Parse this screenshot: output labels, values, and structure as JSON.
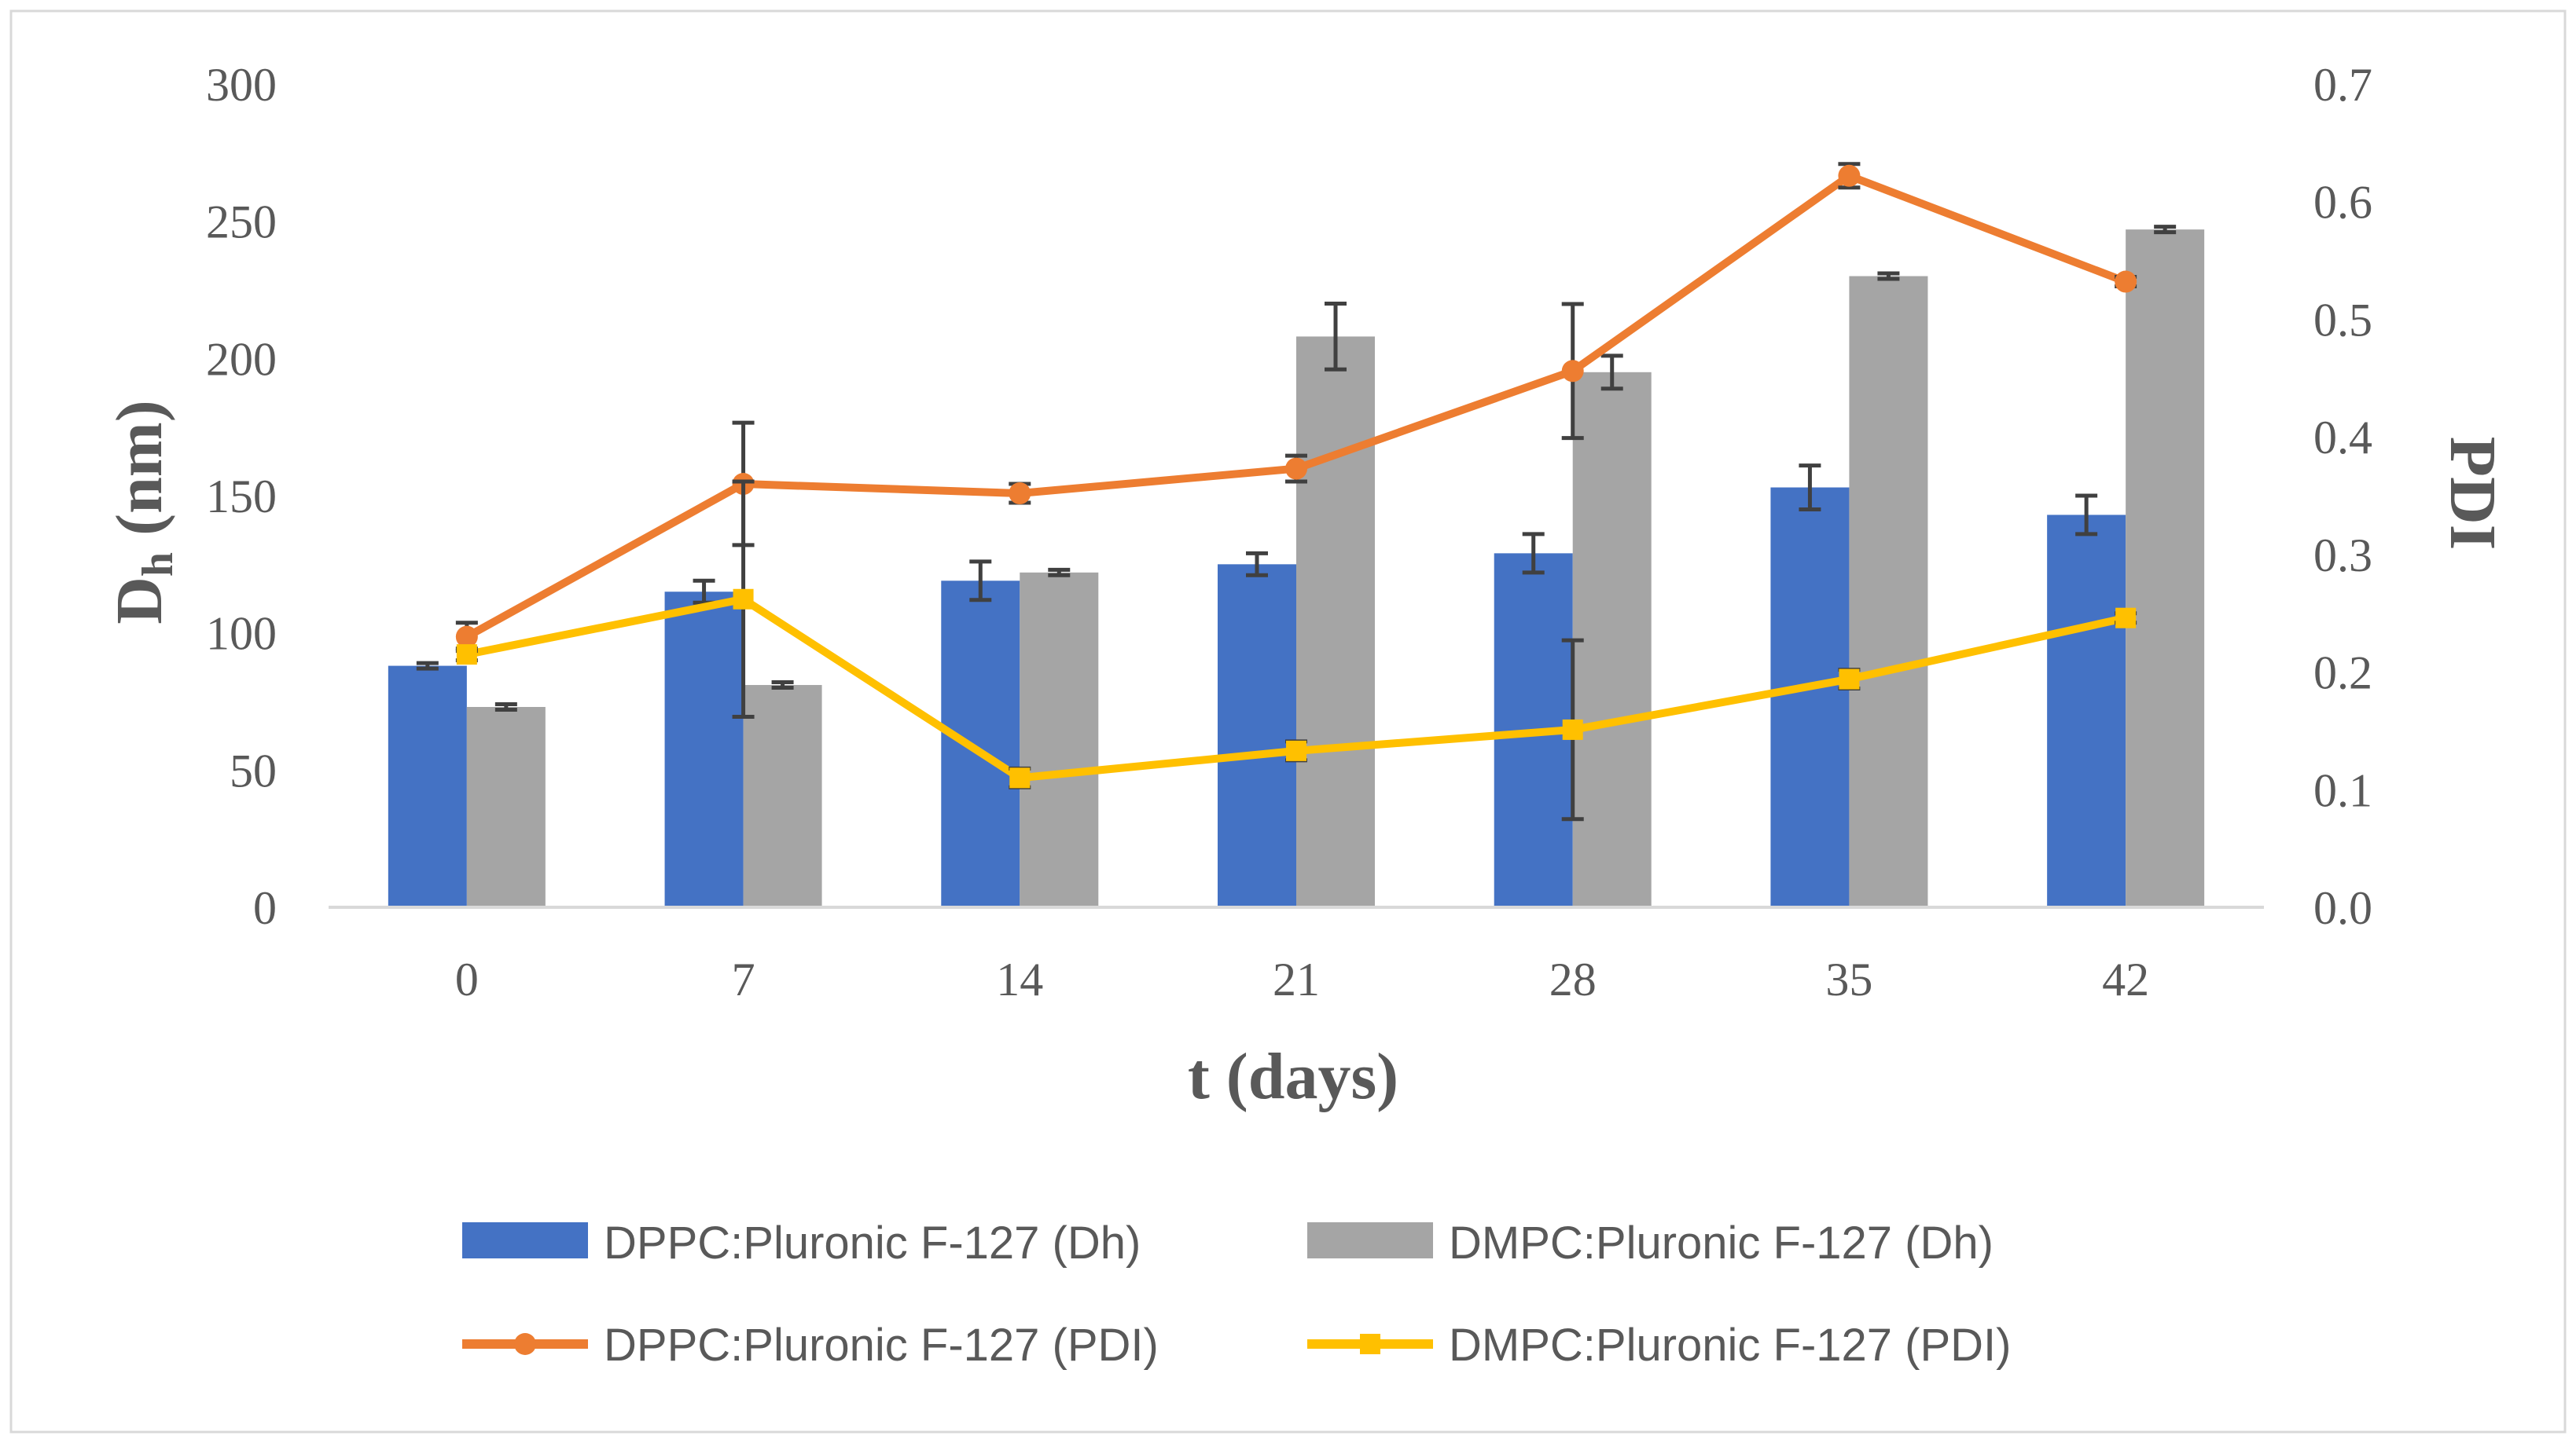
{
  "chart_data": {
    "type": "bar+line",
    "categories": [
      "0",
      "7",
      "14",
      "21",
      "28",
      "35",
      "42"
    ],
    "xlabel": "t (days)",
    "ylabel": {
      "main": "D",
      "sub": "h",
      "rest": " (nm)"
    },
    "y2label": "PDI",
    "ylim": [
      0,
      300
    ],
    "yticks": [
      "0",
      "50",
      "100",
      "150",
      "200",
      "250",
      "300"
    ],
    "y2lim": [
      0,
      0.7
    ],
    "y2ticks": [
      "0.0",
      "0.1",
      "0.2",
      "0.3",
      "0.4",
      "0.5",
      "0.6",
      "0.7"
    ],
    "bar_series": [
      {
        "name": "DPPC:Pluronic F-127 (Dh)",
        "color": "#4472C4",
        "values": [
          88,
          115,
          119,
          125,
          129,
          153,
          143
        ],
        "errors": [
          1,
          4,
          7,
          4,
          7,
          8,
          7
        ]
      },
      {
        "name": "DMPC:Pluronic F-127 (Dh)",
        "color": "#A5A5A5",
        "values": [
          73,
          81,
          122,
          208,
          195,
          230,
          247
        ],
        "errors": [
          1,
          1,
          1,
          12,
          6,
          1,
          1
        ]
      }
    ],
    "line_series": [
      {
        "name": "DPPC:Pluronic F-127 (PDI)",
        "color": "#ED7D31",
        "marker": "circle",
        "values": [
          0.23,
          0.36,
          0.352,
          0.373,
          0.456,
          0.622,
          0.532
        ],
        "errors": [
          0.012,
          0.052,
          0.008,
          0.011,
          0.057,
          0.01,
          0.004
        ]
      },
      {
        "name": "DMPC:Pluronic F-127 (PDI)",
        "color": "#FFC000",
        "marker": "square",
        "values": [
          0.215,
          0.262,
          0.11,
          0.133,
          0.151,
          0.194,
          0.246
        ],
        "errors": [
          0.005,
          0.1,
          0.008,
          0.008,
          0.076,
          0.008,
          0.004
        ]
      }
    ],
    "legend_position": "bottom"
  }
}
